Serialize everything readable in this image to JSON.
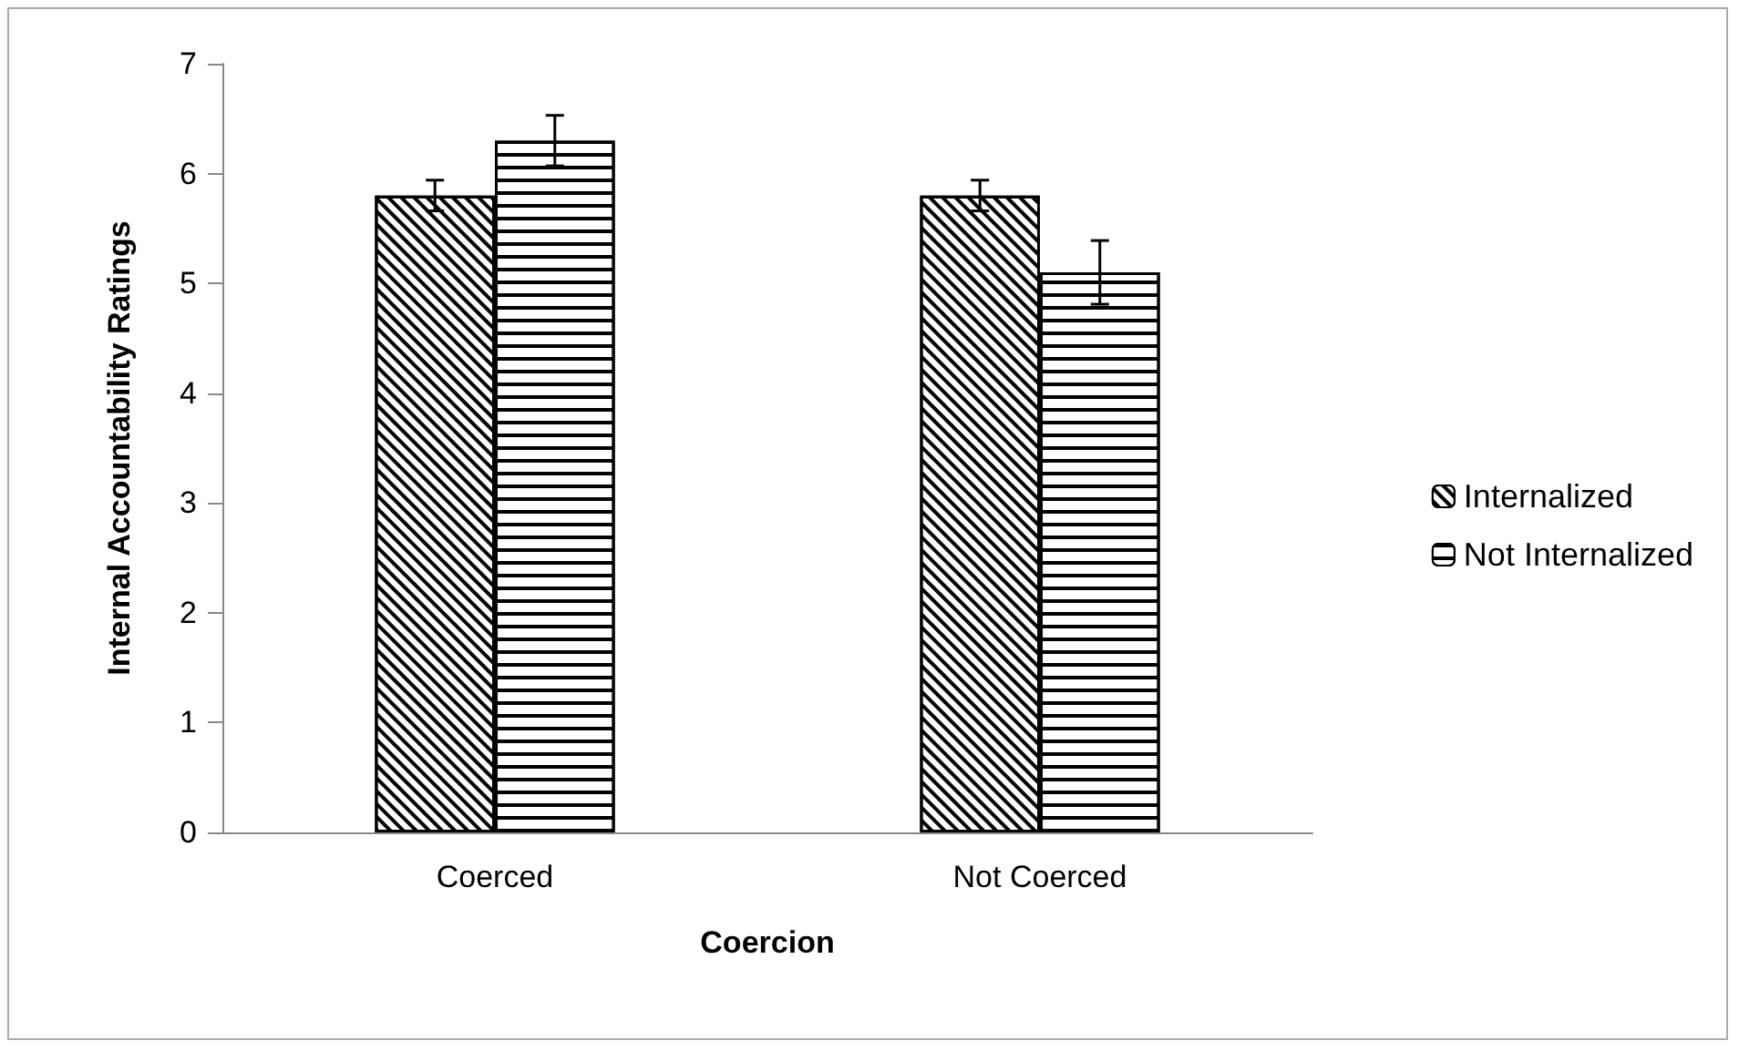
{
  "chart_data": {
    "type": "bar",
    "xlabel": "Coercion",
    "ylabel": "Internal Accountability Ratings",
    "categories": [
      "Coerced",
      "Not Coerced"
    ],
    "series": [
      {
        "name": "Internalized",
        "color": "#000000",
        "values": [
          5.8,
          5.8
        ],
        "errors": [
          0.14,
          0.14
        ]
      },
      {
        "name": "Not Internalized",
        "color": "#000000",
        "values": [
          6.3,
          5.1
        ],
        "errors": [
          0.23,
          0.29
        ]
      }
    ],
    "ylim": [
      0,
      7
    ],
    "yticks": [
      0,
      1,
      2,
      3,
      4,
      5,
      6,
      7
    ],
    "grid": false,
    "legend": "right"
  }
}
